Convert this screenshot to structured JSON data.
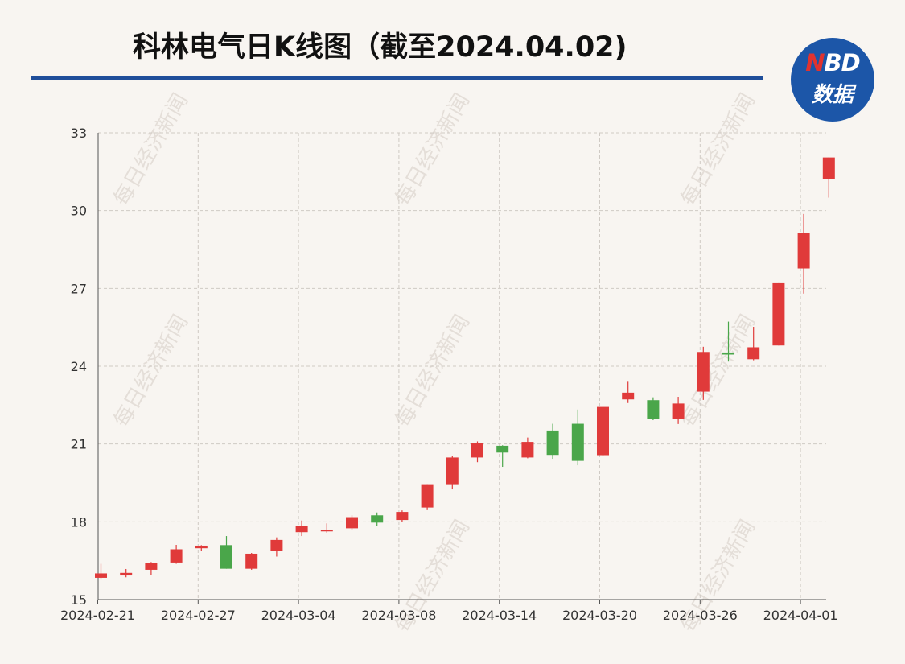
{
  "header": {
    "title": "科林电气日K线图（截至2024.04.02)"
  },
  "logo": {
    "latin": "NBD",
    "latin_first": "N",
    "latin_rest": "BD",
    "chinese": "数据"
  },
  "watermark": "每日经济新闻",
  "colors": {
    "up": "#e03a3a",
    "down": "#4aa64a",
    "rule": "#1f4e9a",
    "logo": "#1c56a8"
  },
  "chart_data": {
    "type": "candlestick",
    "ylim": [
      15,
      33
    ],
    "yticks": [
      15,
      18,
      21,
      24,
      27,
      30,
      33
    ],
    "xtick_labels": [
      "2024-02-21",
      "2024-02-27",
      "2024-03-04",
      "2024-03-08",
      "2024-03-14",
      "2024-03-20",
      "2024-03-26",
      "2024-04-01"
    ],
    "grid": true,
    "candles": [
      {
        "date": "2024-02-21",
        "open": 15.84,
        "close": 16.01,
        "high": 16.38,
        "low": 15.77
      },
      {
        "date": "2024-02-22",
        "open": 15.93,
        "close": 16.03,
        "high": 16.18,
        "low": 15.86
      },
      {
        "date": "2024-02-23",
        "open": 16.15,
        "close": 16.42,
        "high": 16.45,
        "low": 15.95
      },
      {
        "date": "2024-02-26",
        "open": 16.43,
        "close": 16.94,
        "high": 17.11,
        "low": 16.38
      },
      {
        "date": "2024-02-27",
        "open": 16.98,
        "close": 17.08,
        "high": 17.1,
        "low": 16.88
      },
      {
        "date": "2024-02-28",
        "open": 17.1,
        "close": 16.19,
        "high": 17.45,
        "low": 16.19
      },
      {
        "date": "2024-02-29",
        "open": 16.19,
        "close": 16.77,
        "high": 16.8,
        "low": 16.15
      },
      {
        "date": "2024-03-01",
        "open": 16.89,
        "close": 17.3,
        "high": 17.4,
        "low": 16.66
      },
      {
        "date": "2024-03-04",
        "open": 17.6,
        "close": 17.85,
        "high": 18.05,
        "low": 17.45
      },
      {
        "date": "2024-03-05",
        "open": 17.63,
        "close": 17.7,
        "high": 17.94,
        "low": 17.58
      },
      {
        "date": "2024-03-06",
        "open": 17.75,
        "close": 18.18,
        "high": 18.25,
        "low": 17.7
      },
      {
        "date": "2024-03-07",
        "open": 18.25,
        "close": 17.97,
        "high": 18.36,
        "low": 17.85
      },
      {
        "date": "2024-03-08",
        "open": 18.07,
        "close": 18.38,
        "high": 18.44,
        "low": 18.01
      },
      {
        "date": "2024-03-11",
        "open": 18.55,
        "close": 19.45,
        "high": 19.45,
        "low": 18.45
      },
      {
        "date": "2024-03-12",
        "open": 19.45,
        "close": 20.48,
        "high": 20.55,
        "low": 19.25
      },
      {
        "date": "2024-03-13",
        "open": 20.48,
        "close": 21.02,
        "high": 21.1,
        "low": 20.3
      },
      {
        "date": "2024-03-14",
        "open": 20.93,
        "close": 20.67,
        "high": 20.95,
        "low": 20.12
      },
      {
        "date": "2024-03-15",
        "open": 20.48,
        "close": 21.08,
        "high": 21.25,
        "low": 20.45
      },
      {
        "date": "2024-03-18",
        "open": 21.52,
        "close": 20.58,
        "high": 21.78,
        "low": 20.43
      },
      {
        "date": "2024-03-19",
        "open": 21.78,
        "close": 20.35,
        "high": 22.33,
        "low": 20.18
      },
      {
        "date": "2024-03-20",
        "open": 20.57,
        "close": 22.43,
        "high": 22.43,
        "low": 20.55
      },
      {
        "date": "2024-03-21",
        "open": 22.72,
        "close": 22.98,
        "high": 23.4,
        "low": 22.58
      },
      {
        "date": "2024-03-22",
        "open": 22.69,
        "close": 21.97,
        "high": 22.8,
        "low": 21.92
      },
      {
        "date": "2024-03-25",
        "open": 21.98,
        "close": 22.56,
        "high": 22.82,
        "low": 21.77
      },
      {
        "date": "2024-03-26",
        "open": 23.02,
        "close": 24.55,
        "high": 24.75,
        "low": 22.7
      },
      {
        "date": "2024-03-27",
        "open": 24.53,
        "close": 24.45,
        "high": 25.72,
        "low": 24.18
      },
      {
        "date": "2024-03-28",
        "open": 24.27,
        "close": 24.73,
        "high": 25.52,
        "low": 24.23
      },
      {
        "date": "2024-03-29",
        "open": 24.8,
        "close": 27.23,
        "high": 27.23,
        "low": 24.8
      },
      {
        "date": "2024-04-01",
        "open": 27.77,
        "close": 29.15,
        "high": 29.87,
        "low": 26.8
      },
      {
        "date": "2024-04-02",
        "open": 31.2,
        "close": 32.05,
        "high": 32.05,
        "low": 30.5
      }
    ]
  }
}
